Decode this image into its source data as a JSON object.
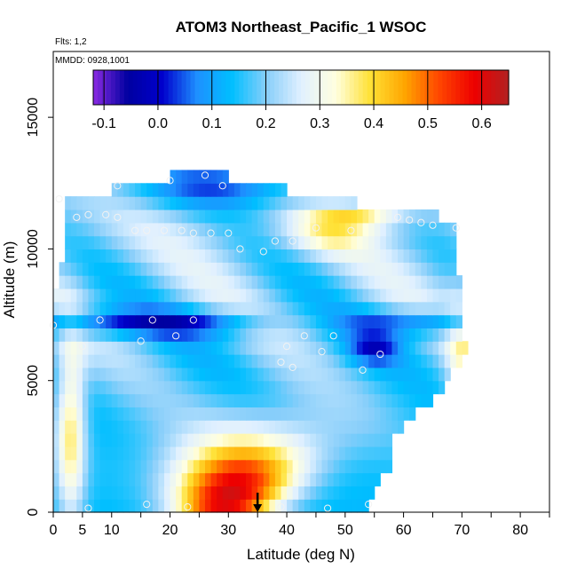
{
  "chart_data": {
    "type": "heatmap",
    "title": "ATOM3 Northeast_Pacific_1 WSOC",
    "subtitle_flights": "Flts: 1,2",
    "subtitle_dates": "MMDD: 0928,1001",
    "xlabel": "Latitude (deg N)",
    "ylabel": "Altitude (m)",
    "xlim": [
      0,
      85
    ],
    "ylim": [
      0,
      17500
    ],
    "x_ticks": [
      0,
      5,
      10,
      20,
      30,
      40,
      50,
      60,
      70,
      80
    ],
    "x_ticks_minor": [
      15,
      25,
      35,
      45,
      55,
      65,
      75,
      85
    ],
    "y_ticks": [
      0,
      5000,
      10000,
      15000
    ],
    "colorbar": {
      "min": -0.12,
      "max": 0.65,
      "ticks": [
        -0.1,
        0.0,
        0.1,
        0.2,
        0.3,
        0.4,
        0.5,
        0.6
      ],
      "tick_labels": [
        "-0.1",
        "0.0",
        "0.1",
        "0.2",
        "0.3",
        "0.4",
        "0.5",
        "0.6"
      ],
      "colors": [
        "#8a2be2",
        "#0000a0",
        "#0000cd",
        "#1e90ff",
        "#00bfff",
        "#87cefa",
        "#e0f0ff",
        "#ffffe0",
        "#ffe135",
        "#ffa500",
        "#ff4500",
        "#ee0000",
        "#b22222"
      ]
    },
    "altitude_bins": [
      {
        "alt": 250,
        "lat_min": 0,
        "lat_max": 54
      },
      {
        "alt": 750,
        "lat_min": 0,
        "lat_max": 55
      },
      {
        "alt": 1250,
        "lat_min": 0,
        "lat_max": 56
      },
      {
        "alt": 1750,
        "lat_min": 0,
        "lat_max": 58
      },
      {
        "alt": 2250,
        "lat_min": 0,
        "lat_max": 58
      },
      {
        "alt": 2750,
        "lat_min": 0,
        "lat_max": 58
      },
      {
        "alt": 3250,
        "lat_min": 0,
        "lat_max": 60
      },
      {
        "alt": 3750,
        "lat_min": 0,
        "lat_max": 62
      },
      {
        "alt": 4250,
        "lat_min": 0,
        "lat_max": 65
      },
      {
        "alt": 4750,
        "lat_min": 0,
        "lat_max": 67
      },
      {
        "alt": 5250,
        "lat_min": 0,
        "lat_max": 68
      },
      {
        "alt": 5750,
        "lat_min": 0,
        "lat_max": 70
      },
      {
        "alt": 6250,
        "lat_min": 0,
        "lat_max": 71
      },
      {
        "alt": 6750,
        "lat_min": 0,
        "lat_max": 70
      },
      {
        "alt": 7250,
        "lat_min": 0,
        "lat_max": 70
      },
      {
        "alt": 7750,
        "lat_min": 0,
        "lat_max": 70
      },
      {
        "alt": 8250,
        "lat_min": 0,
        "lat_max": 70
      },
      {
        "alt": 8750,
        "lat_min": 1,
        "lat_max": 70
      },
      {
        "alt": 9250,
        "lat_min": 1,
        "lat_max": 69
      },
      {
        "alt": 9750,
        "lat_min": 2,
        "lat_max": 69
      },
      {
        "alt": 10250,
        "lat_min": 2,
        "lat_max": 69
      },
      {
        "alt": 10750,
        "lat_min": 2,
        "lat_max": 69
      },
      {
        "alt": 11250,
        "lat_min": 2,
        "lat_max": 66
      },
      {
        "alt": 11750,
        "lat_min": 2,
        "lat_max": 52
      },
      {
        "alt": 12250,
        "lat_min": 10,
        "lat_max": 40
      },
      {
        "alt": 12750,
        "lat_min": 20,
        "lat_max": 30
      }
    ],
    "samples": [
      {
        "lat": 0,
        "alt": 7100
      },
      {
        "lat": 5,
        "alt": 6300
      },
      {
        "lat": 6,
        "alt": 150
      },
      {
        "lat": 8,
        "alt": 7300
      },
      {
        "lat": 15,
        "alt": 6500
      },
      {
        "lat": 16,
        "alt": 300
      },
      {
        "lat": 17,
        "alt": 7300
      },
      {
        "lat": 21,
        "alt": 6700
      },
      {
        "lat": 24,
        "alt": 7300
      },
      {
        "lat": 23,
        "alt": 200
      },
      {
        "lat": 39,
        "alt": 200
      },
      {
        "lat": 40,
        "alt": 6300
      },
      {
        "lat": 39,
        "alt": 5700
      },
      {
        "lat": 41,
        "alt": 5500
      },
      {
        "lat": 43,
        "alt": 6700
      },
      {
        "lat": 46,
        "alt": 6100
      },
      {
        "lat": 48,
        "alt": 6700
      },
      {
        "lat": 47,
        "alt": 150
      },
      {
        "lat": 53,
        "alt": 5400
      },
      {
        "lat": 54,
        "alt": 300
      },
      {
        "lat": 56,
        "alt": 6000
      },
      {
        "lat": 1,
        "alt": 11900
      },
      {
        "lat": 4,
        "alt": 11200
      },
      {
        "lat": 6,
        "alt": 11300
      },
      {
        "lat": 9,
        "alt": 11300
      },
      {
        "lat": 11,
        "alt": 11200
      },
      {
        "lat": 14,
        "alt": 10700
      },
      {
        "lat": 16,
        "alt": 10700
      },
      {
        "lat": 19,
        "alt": 10700
      },
      {
        "lat": 22,
        "alt": 10700
      },
      {
        "lat": 24,
        "alt": 10600
      },
      {
        "lat": 27,
        "alt": 10600
      },
      {
        "lat": 30,
        "alt": 10600
      },
      {
        "lat": 32,
        "alt": 10000
      },
      {
        "lat": 36,
        "alt": 9900
      },
      {
        "lat": 38,
        "alt": 10300
      },
      {
        "lat": 41,
        "alt": 10300
      },
      {
        "lat": 45,
        "alt": 10800
      },
      {
        "lat": 51,
        "alt": 10700
      },
      {
        "lat": 59,
        "alt": 11200
      },
      {
        "lat": 61,
        "alt": 11100
      },
      {
        "lat": 63,
        "alt": 11000
      },
      {
        "lat": 65,
        "alt": 10900
      },
      {
        "lat": 69,
        "alt": 10800
      },
      {
        "lat": 11,
        "alt": 12400
      },
      {
        "lat": 20,
        "alt": 12600
      },
      {
        "lat": 26,
        "alt": 12800
      },
      {
        "lat": 29,
        "alt": 12400
      }
    ],
    "marker": {
      "lat": 35,
      "alt": 0
    }
  }
}
